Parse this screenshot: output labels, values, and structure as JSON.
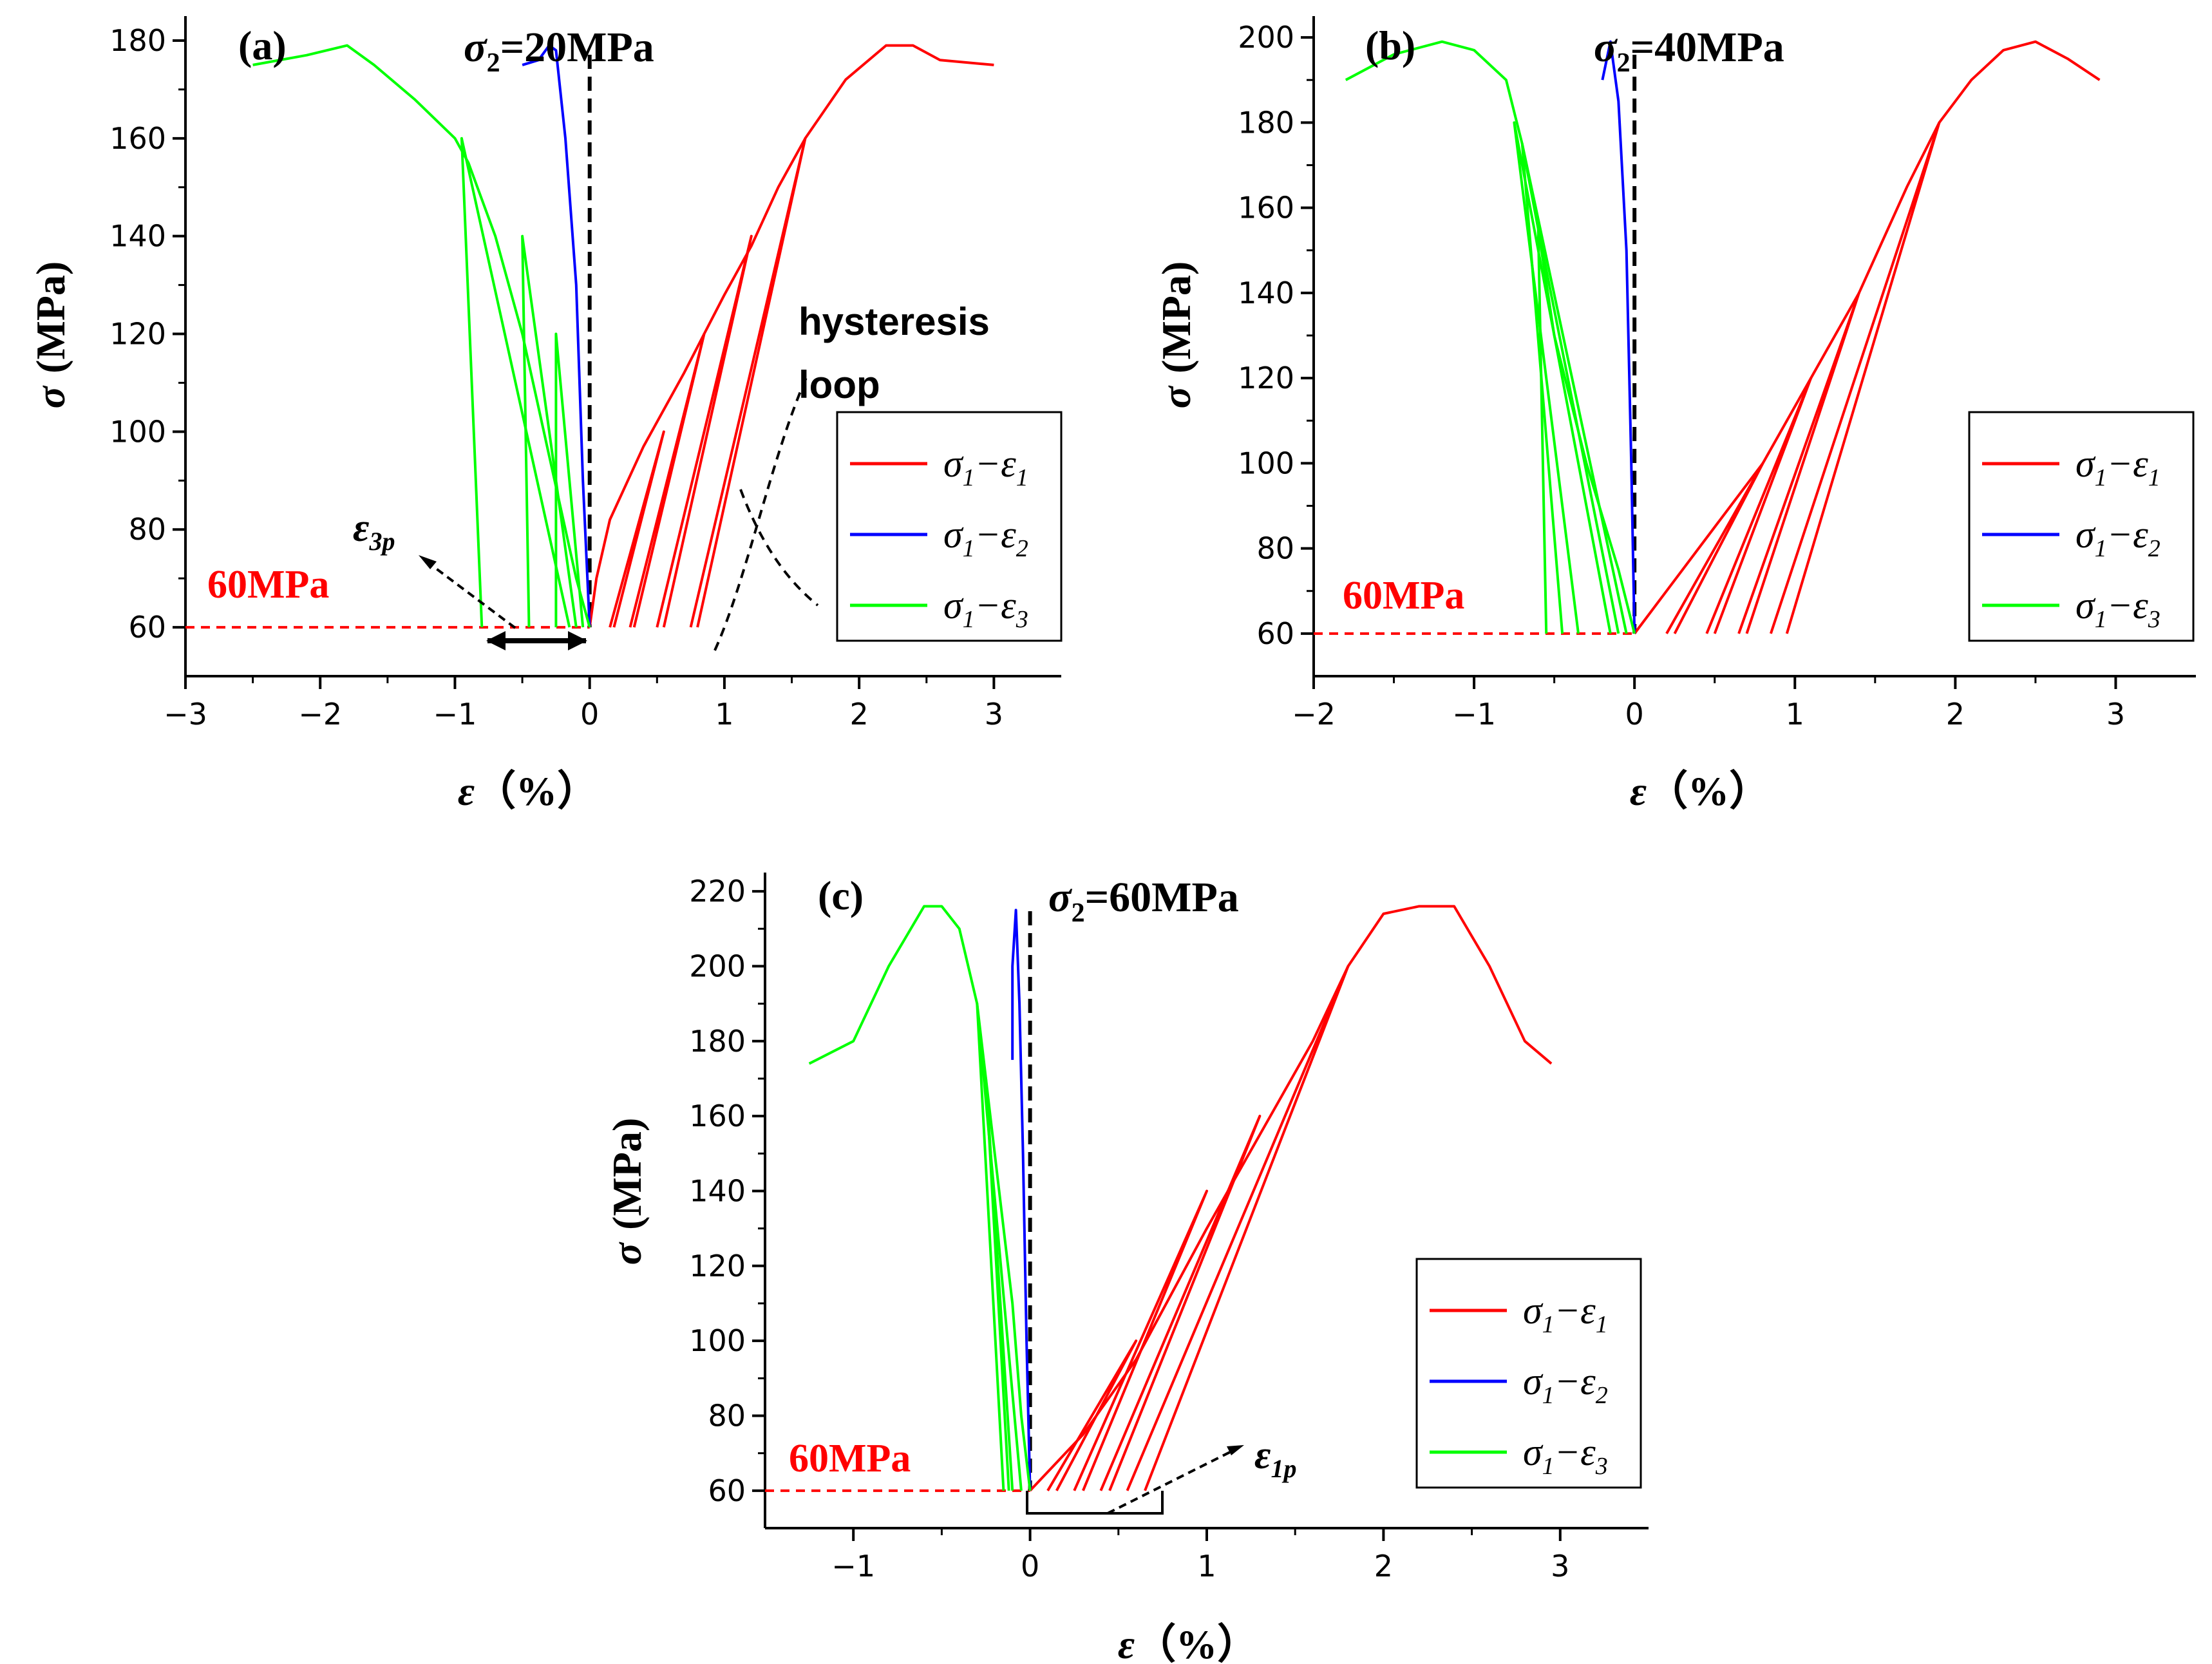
{
  "chart_data": [
    {
      "type": "line",
      "panel": "(a)",
      "title": "σ2=20MPa",
      "title_main": "σ",
      "title_sub": "2",
      "title_tail": "=20MPa",
      "xlabel": "ε (%)",
      "xlabel_sym": "ε",
      "xlabel_unit": "（%）",
      "ylabel": "σ (MPa)",
      "ylabel_sym": "σ",
      "ylabel_unit": "(MPa)",
      "xlim": [
        -3,
        3.5
      ],
      "ylim": [
        50,
        185
      ],
      "xticks": [
        -3,
        -2,
        -1,
        0,
        1,
        2,
        3
      ],
      "xtick_labels": [
        "−3",
        "−2",
        "−1",
        "0",
        "1",
        "2",
        "3"
      ],
      "yticks": [
        60,
        80,
        100,
        120,
        140,
        160,
        180
      ],
      "ytick_labels": [
        "60",
        "80",
        "100",
        "120",
        "140",
        "160",
        "180"
      ],
      "reference_line": {
        "y": 60,
        "label": "60MPa",
        "color": "#ff0000"
      },
      "annotations": {
        "hysteresis": [
          "hysteresis",
          "loop"
        ],
        "strain": {
          "symbol": "ε",
          "sub": "3p"
        }
      },
      "legend": [
        {
          "label": "σ1−ε1",
          "sym_a": "σ",
          "sub_a": "1",
          "dash": "−",
          "sym_b": "ε",
          "sub_b": "1",
          "color": "#ff0000"
        },
        {
          "label": "σ1−ε2",
          "sym_a": "σ",
          "sub_a": "1",
          "dash": "−",
          "sym_b": "ε",
          "sub_b": "2",
          "color": "#0000ff"
        },
        {
          "label": "σ1−ε3",
          "sym_a": "σ",
          "sub_a": "1",
          "dash": "−",
          "sym_b": "ε",
          "sub_b": "3",
          "color": "#00ff00"
        }
      ],
      "series": [
        {
          "name": "σ1−ε1",
          "color": "#ff0000",
          "paths": [
            [
              [
                0,
                60
              ],
              [
                0.05,
                70
              ],
              [
                0.15,
                82
              ],
              [
                0.4,
                97
              ],
              [
                0.7,
                112
              ],
              [
                0.85,
                120
              ],
              [
                1.0,
                128
              ],
              [
                1.2,
                138
              ],
              [
                1.4,
                150
              ],
              [
                1.6,
                160
              ],
              [
                1.9,
                172
              ],
              [
                2.2,
                179
              ],
              [
                2.4,
                179
              ],
              [
                2.6,
                176
              ],
              [
                3.0,
                175
              ]
            ],
            [
              [
                0.15,
                60
              ],
              [
                0.55,
                100
              ],
              [
                0.18,
                60
              ]
            ],
            [
              [
                0.3,
                60
              ],
              [
                0.85,
                120
              ],
              [
                0.33,
                60
              ]
            ],
            [
              [
                0.5,
                60
              ],
              [
                1.2,
                140
              ],
              [
                0.55,
                60
              ]
            ],
            [
              [
                0.75,
                60
              ],
              [
                1.6,
                160
              ],
              [
                0.8,
                60
              ]
            ]
          ]
        },
        {
          "name": "σ1−ε2",
          "color": "#0000ff",
          "paths": [
            [
              [
                0,
                60
              ],
              [
                -0.05,
                90
              ],
              [
                -0.1,
                130
              ],
              [
                -0.18,
                160
              ],
              [
                -0.25,
                178
              ],
              [
                -0.3,
                179
              ],
              [
                -0.38,
                176
              ],
              [
                -0.5,
                175
              ]
            ]
          ]
        },
        {
          "name": "σ1−ε3",
          "color": "#00ff00",
          "paths": [
            [
              [
                0,
                60
              ],
              [
                -0.1,
                70
              ],
              [
                -0.3,
                95
              ],
              [
                -0.5,
                120
              ],
              [
                -0.7,
                140
              ],
              [
                -0.9,
                155
              ],
              [
                -1.0,
                160
              ],
              [
                -1.3,
                168
              ],
              [
                -1.6,
                175
              ],
              [
                -1.8,
                179
              ],
              [
                -2.1,
                177
              ],
              [
                -2.5,
                175
              ]
            ],
            [
              [
                -0.1,
                60
              ],
              [
                -0.5,
                140
              ],
              [
                -0.45,
                60
              ]
            ],
            [
              [
                -0.15,
                60
              ],
              [
                -0.95,
                160
              ],
              [
                -0.8,
                60
              ]
            ],
            [
              [
                -0.05,
                60
              ],
              [
                -0.25,
                120
              ],
              [
                -0.25,
                60
              ]
            ]
          ]
        }
      ]
    },
    {
      "type": "line",
      "panel": "(b)",
      "title": "σ2=40MPa",
      "title_main": "σ",
      "title_sub": "2",
      "title_tail": "=40MPa",
      "xlabel": "ε (%)",
      "xlabel_sym": "ε",
      "xlabel_unit": "（%）",
      "ylabel": "σ (MPa)",
      "ylabel_sym": "σ",
      "ylabel_unit": "(MPa)",
      "xlim": [
        -2,
        3.5
      ],
      "ylim": [
        50,
        205
      ],
      "xticks": [
        -2,
        -1,
        0,
        1,
        2,
        3
      ],
      "xtick_labels": [
        "−2",
        "−1",
        "0",
        "1",
        "2",
        "3"
      ],
      "yticks": [
        60,
        80,
        100,
        120,
        140,
        160,
        180,
        200
      ],
      "ytick_labels": [
        "60",
        "80",
        "100",
        "120",
        "140",
        "160",
        "180",
        "200"
      ],
      "reference_line": {
        "y": 60,
        "label": "60MPa",
        "color": "#ff0000"
      },
      "legend": [
        {
          "label": "σ1−ε1",
          "sym_a": "σ",
          "sub_a": "1",
          "dash": "−",
          "sym_b": "ε",
          "sub_b": "1",
          "color": "#ff0000"
        },
        {
          "label": "σ1−ε2",
          "sym_a": "σ",
          "sub_a": "1",
          "dash": "−",
          "sym_b": "ε",
          "sub_b": "2",
          "color": "#0000ff"
        },
        {
          "label": "σ1−ε3",
          "sym_a": "σ",
          "sub_a": "1",
          "dash": "−",
          "sym_b": "ε",
          "sub_b": "3",
          "color": "#00ff00"
        }
      ],
      "series": [
        {
          "name": "σ1−ε1",
          "color": "#ff0000",
          "paths": [
            [
              [
                0,
                60
              ],
              [
                0.2,
                70
              ],
              [
                0.5,
                85
              ],
              [
                0.8,
                100
              ],
              [
                1.1,
                120
              ],
              [
                1.4,
                140
              ],
              [
                1.7,
                165
              ],
              [
                1.9,
                180
              ],
              [
                2.1,
                190
              ],
              [
                2.3,
                197
              ],
              [
                2.5,
                199
              ],
              [
                2.7,
                195
              ],
              [
                2.9,
                190
              ]
            ],
            [
              [
                0.2,
                60
              ],
              [
                0.8,
                100
              ],
              [
                0.25,
                60
              ]
            ],
            [
              [
                0.45,
                60
              ],
              [
                1.1,
                120
              ],
              [
                0.5,
                60
              ]
            ],
            [
              [
                0.65,
                60
              ],
              [
                1.4,
                140
              ],
              [
                0.7,
                60
              ]
            ],
            [
              [
                0.85,
                60
              ],
              [
                1.9,
                180
              ],
              [
                0.95,
                60
              ]
            ]
          ]
        },
        {
          "name": "σ1−ε2",
          "color": "#0000ff",
          "paths": [
            [
              [
                0,
                60
              ],
              [
                -0.02,
                100
              ],
              [
                -0.05,
                150
              ],
              [
                -0.1,
                185
              ],
              [
                -0.15,
                199
              ],
              [
                -0.2,
                190
              ]
            ]
          ]
        },
        {
          "name": "σ1−ε3",
          "color": "#00ff00",
          "paths": [
            [
              [
                0,
                60
              ],
              [
                -0.1,
                75
              ],
              [
                -0.3,
                100
              ],
              [
                -0.5,
                130
              ],
              [
                -0.6,
                155
              ],
              [
                -0.7,
                175
              ],
              [
                -0.8,
                190
              ],
              [
                -1.0,
                197
              ],
              [
                -1.2,
                199
              ],
              [
                -1.5,
                196
              ],
              [
                -1.8,
                190
              ]
            ],
            [
              [
                -0.1,
                60
              ],
              [
                -0.6,
                155
              ],
              [
                -0.55,
                60
              ]
            ],
            [
              [
                -0.05,
                60
              ],
              [
                -0.7,
                175
              ],
              [
                -0.45,
                60
              ]
            ],
            [
              [
                -0.15,
                60
              ],
              [
                -0.75,
                180
              ],
              [
                -0.35,
                60
              ]
            ]
          ]
        }
      ]
    },
    {
      "type": "line",
      "panel": "(c)",
      "title": "σ2=60MPa",
      "title_main": "σ",
      "title_sub": "2",
      "title_tail": "=60MPa",
      "xlabel": "ε (%)",
      "xlabel_sym": "ε",
      "xlabel_unit": "（%）",
      "ylabel": "σ (MPa)",
      "ylabel_sym": "σ",
      "ylabel_unit": "(MPa)",
      "xlim": [
        -1.5,
        3.5
      ],
      "ylim": [
        50,
        225
      ],
      "xticks": [
        -1,
        0,
        1,
        2,
        3
      ],
      "xtick_labels": [
        "−1",
        "0",
        "1",
        "2",
        "3"
      ],
      "yticks": [
        60,
        80,
        100,
        120,
        140,
        160,
        180,
        200,
        220
      ],
      "ytick_labels": [
        "60",
        "80",
        "100",
        "120",
        "140",
        "160",
        "180",
        "200",
        "220"
      ],
      "reference_line": {
        "y": 60,
        "label": "60MPa",
        "color": "#ff0000"
      },
      "annotations": {
        "strain": {
          "symbol": "ε",
          "sub": "1p"
        }
      },
      "legend": [
        {
          "label": "σ1−ε1",
          "sym_a": "σ",
          "sub_a": "1",
          "dash": "−",
          "sym_b": "ε",
          "sub_b": "1",
          "color": "#ff0000"
        },
        {
          "label": "σ1−ε2",
          "sym_a": "σ",
          "sub_a": "1",
          "dash": "−",
          "sym_b": "ε",
          "sub_b": "2",
          "color": "#0000ff"
        },
        {
          "label": "σ1−ε3",
          "sym_a": "σ",
          "sub_a": "1",
          "dash": "−",
          "sym_b": "ε",
          "sub_b": "3",
          "color": "#00ff00"
        }
      ],
      "series": [
        {
          "name": "σ1−ε1",
          "color": "#ff0000",
          "paths": [
            [
              [
                0,
                60
              ],
              [
                0.3,
                75
              ],
              [
                0.6,
                95
              ],
              [
                1.0,
                130
              ],
              [
                1.3,
                155
              ],
              [
                1.6,
                180
              ],
              [
                1.8,
                200
              ],
              [
                2.0,
                214
              ],
              [
                2.2,
                216
              ],
              [
                2.4,
                216
              ],
              [
                2.6,
                200
              ],
              [
                2.8,
                180
              ],
              [
                2.95,
                174
              ]
            ],
            [
              [
                0.1,
                60
              ],
              [
                0.6,
                100
              ],
              [
                0.15,
                60
              ]
            ],
            [
              [
                0.25,
                60
              ],
              [
                1.0,
                140
              ],
              [
                0.3,
                60
              ]
            ],
            [
              [
                0.4,
                60
              ],
              [
                1.3,
                160
              ],
              [
                0.45,
                60
              ]
            ],
            [
              [
                0.55,
                60
              ],
              [
                1.8,
                200
              ],
              [
                0.65,
                60
              ]
            ]
          ]
        },
        {
          "name": "σ1−ε2",
          "color": "#0000ff",
          "paths": [
            [
              [
                0,
                60
              ],
              [
                -0.02,
                100
              ],
              [
                -0.04,
                150
              ],
              [
                -0.06,
                190
              ],
              [
                -0.08,
                215
              ],
              [
                -0.1,
                200
              ],
              [
                -0.1,
                175
              ]
            ]
          ]
        },
        {
          "name": "σ1−ε3",
          "color": "#00ff00",
          "paths": [
            [
              [
                0,
                60
              ],
              [
                -0.05,
                80
              ],
              [
                -0.1,
                110
              ],
              [
                -0.2,
                150
              ],
              [
                -0.3,
                190
              ],
              [
                -0.4,
                210
              ],
              [
                -0.5,
                216
              ],
              [
                -0.6,
                216
              ],
              [
                -0.8,
                200
              ],
              [
                -1.0,
                180
              ],
              [
                -1.25,
                174
              ]
            ],
            [
              [
                -0.05,
                60
              ],
              [
                -0.3,
                190
              ],
              [
                -0.15,
                60
              ]
            ],
            [
              [
                -0.1,
                60
              ],
              [
                -0.25,
                170
              ],
              [
                -0.12,
                60
              ]
            ]
          ]
        }
      ]
    }
  ]
}
